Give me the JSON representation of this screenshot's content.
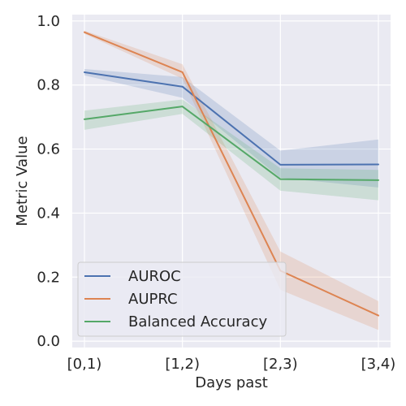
{
  "chart_data": {
    "type": "line",
    "title": "",
    "xlabel": "Days past",
    "ylabel": "Metric Value",
    "categories": [
      "[0,1)",
      "[1,2)",
      "[2,3)",
      "[3,4)"
    ],
    "ylim": [
      -0.02,
      1.02
    ],
    "yticks": [
      0.0,
      0.2,
      0.4,
      0.6,
      0.8,
      1.0
    ],
    "ytick_labels": [
      "0.0",
      "0.2",
      "0.4",
      "0.6",
      "0.8",
      "1.0"
    ],
    "grid": true,
    "legend_position": "lower-left",
    "series": [
      {
        "name": "AUROC",
        "color": "#4c72b0",
        "values": [
          0.84,
          0.795,
          0.551,
          0.552
        ],
        "lower": [
          0.83,
          0.76,
          0.51,
          0.48
        ],
        "upper": [
          0.85,
          0.825,
          0.595,
          0.63
        ]
      },
      {
        "name": "AUPRC",
        "color": "#dd8452",
        "values": [
          0.965,
          0.84,
          0.22,
          0.08
        ],
        "lower": [
          0.96,
          0.82,
          0.16,
          0.035
        ],
        "upper": [
          0.97,
          0.865,
          0.28,
          0.125
        ]
      },
      {
        "name": "Balanced Accuracy",
        "color": "#55a868",
        "values": [
          0.693,
          0.733,
          0.506,
          0.503
        ],
        "lower": [
          0.66,
          0.71,
          0.47,
          0.44
        ],
        "upper": [
          0.72,
          0.755,
          0.54,
          0.535
        ]
      }
    ]
  }
}
